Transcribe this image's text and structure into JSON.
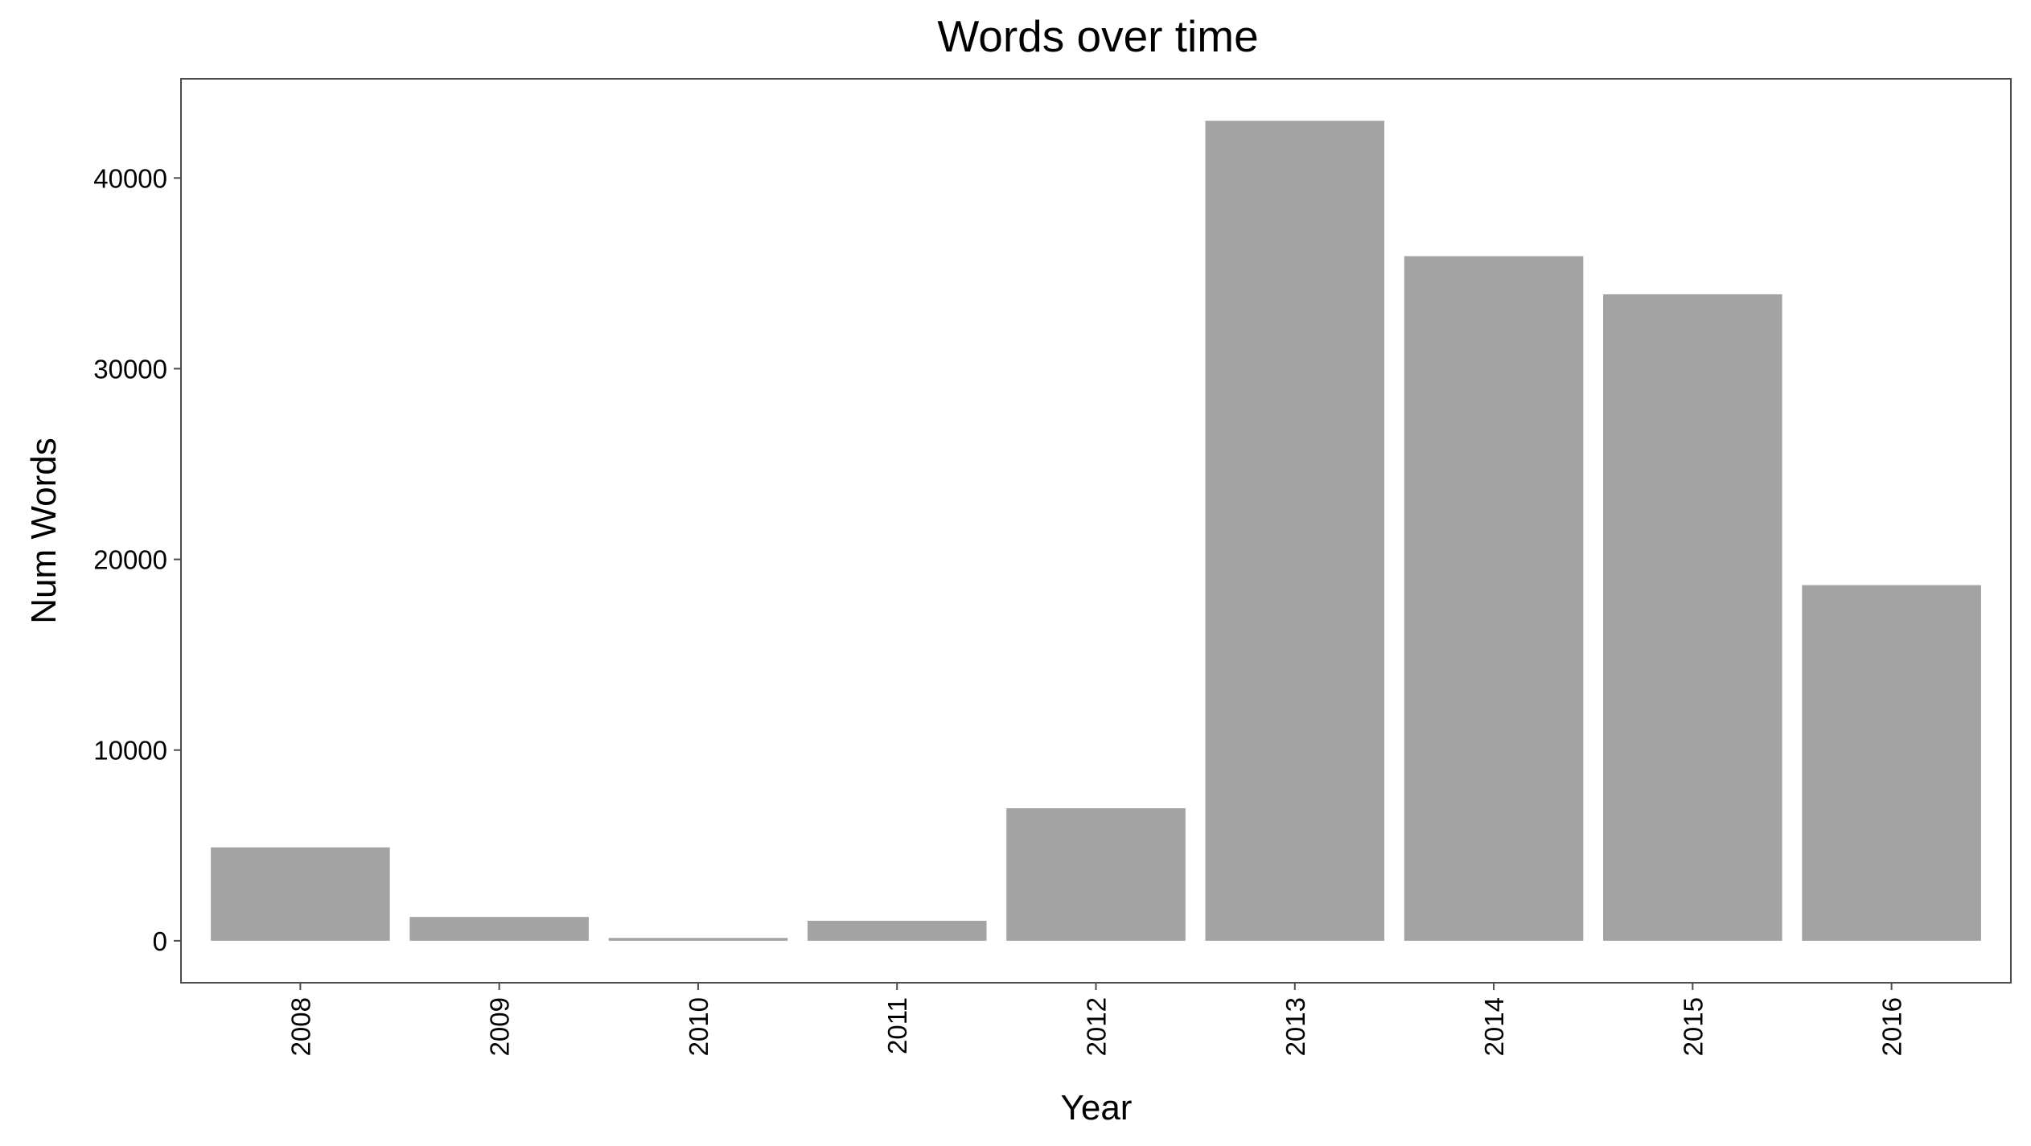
{
  "chart_data": {
    "type": "bar",
    "title": "Words over time",
    "xlabel": "Year",
    "ylabel": "Num Words",
    "categories": [
      "2008",
      "2009",
      "2010",
      "2011",
      "2012",
      "2013",
      "2014",
      "2015",
      "2016"
    ],
    "values": [
      4900,
      1250,
      150,
      1050,
      6950,
      43000,
      35900,
      33900,
      18650
    ],
    "ylim": [
      -2200,
      45200
    ],
    "yticks": [
      0,
      10000,
      20000,
      30000,
      40000
    ],
    "ytick_labels": [
      "0",
      "10000",
      "20000",
      "30000",
      "40000"
    ],
    "bar_color": "#a3a3a3",
    "panel_border_color": "#4d4d4d",
    "background": "#ffffff",
    "grid": false,
    "legend": "none",
    "x_tick_rotation": "vertical"
  }
}
